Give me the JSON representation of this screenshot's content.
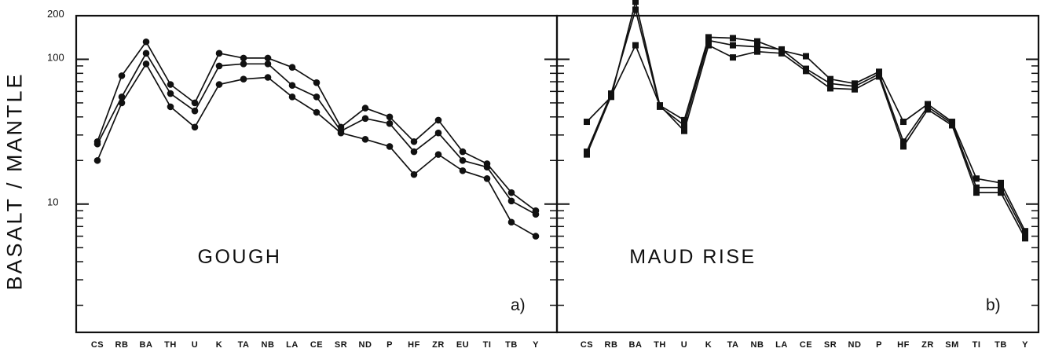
{
  "figure": {
    "ylabel": "BASALT / MANTLE",
    "yticks": [
      {
        "value": 200,
        "label": "200"
      },
      {
        "value": 100,
        "label": "100"
      },
      {
        "value": 10,
        "label": "10"
      }
    ]
  },
  "chart_data": [
    {
      "type": "line",
      "scale": "log",
      "ylim": [
        1.3,
        200
      ],
      "panel_title": "GOUGH",
      "panel_letter": "a)",
      "marker": "circle",
      "categories": [
        "CS",
        "RB",
        "BA",
        "TH",
        "U",
        "K",
        "TA",
        "NB",
        "LA",
        "CE",
        "SR",
        "ND",
        "P",
        "HF",
        "ZR",
        "EU",
        "TI",
        "TB",
        "Y"
      ],
      "series": [
        {
          "values": [
            27,
            77,
            132,
            67,
            50,
            110,
            102,
            102,
            88,
            69,
            34,
            46,
            40,
            27,
            38,
            23,
            19,
            12,
            9
          ]
        },
        {
          "values": [
            26,
            55,
            110,
            58,
            44,
            90,
            93,
            93,
            66,
            55,
            32,
            39,
            36,
            23,
            31,
            20,
            18,
            10.5,
            8.5
          ]
        },
        {
          "values": [
            20,
            50,
            93,
            47,
            34,
            67,
            73,
            75,
            55,
            43,
            31,
            28,
            25,
            16,
            22,
            17,
            15,
            7.5,
            6
          ]
        }
      ]
    },
    {
      "type": "line",
      "scale": "log",
      "ylim": [
        1.3,
        200
      ],
      "panel_title": "MAUD RISE",
      "panel_letter": "b)",
      "marker": "square",
      "categories": [
        "CS",
        "RB",
        "BA",
        "TH",
        "U",
        "K",
        "TA",
        "NB",
        "LA",
        "CE",
        "SR",
        "ND",
        "P",
        "HF",
        "ZR",
        "SM",
        "TI",
        "TB",
        "Y"
      ],
      "series": [
        {
          "values": [
            37,
            55,
            250,
            48,
            38,
            142,
            140,
            133,
            115,
            105,
            73,
            68,
            82,
            37,
            49,
            37,
            15,
            14,
            6.5
          ]
        },
        {
          "values": [
            23,
            58,
            220,
            47,
            35,
            135,
            125,
            122,
            117,
            86,
            68,
            65,
            79,
            27,
            47,
            36,
            13,
            13,
            6.2
          ]
        },
        {
          "values": [
            22,
            56,
            125,
            48,
            32,
            125,
            103,
            113,
            110,
            83,
            63,
            62,
            76,
            25,
            45,
            35,
            12,
            12,
            5.8
          ]
        }
      ]
    }
  ]
}
